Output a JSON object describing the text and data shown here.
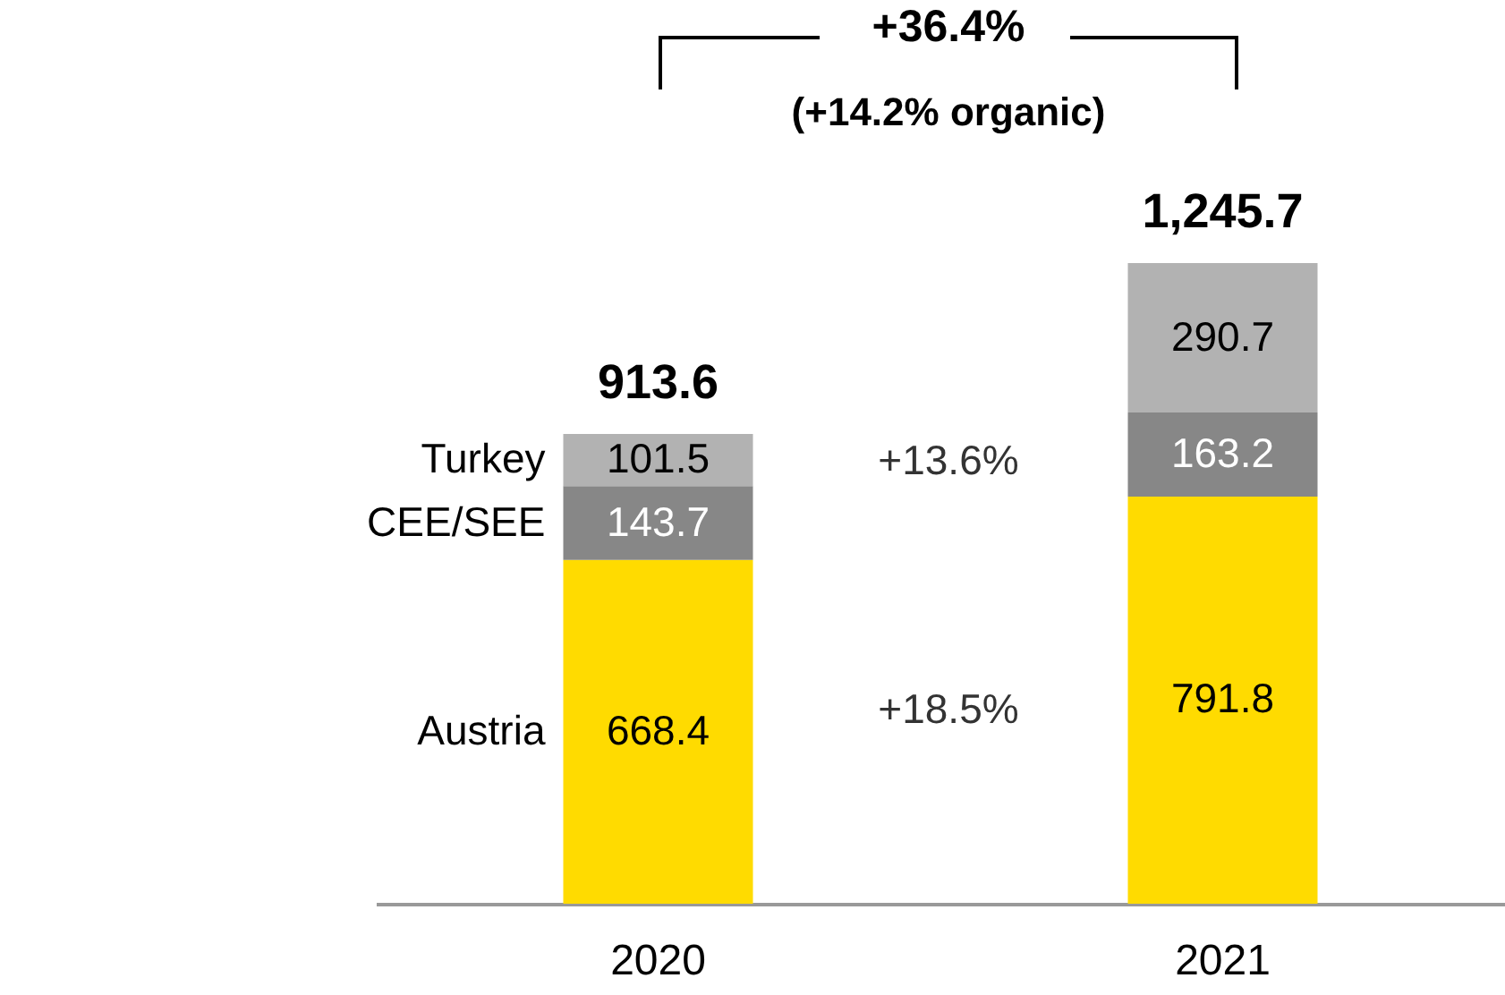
{
  "chart_data": {
    "type": "bar",
    "stacked": true,
    "data_labels": true,
    "legend": "left",
    "categories": [
      "2020",
      "2021"
    ],
    "series": [
      {
        "name": "Austria",
        "color": "#ffdb00",
        "values": [
          668.4,
          791.8
        ]
      },
      {
        "name": "CEE/SEE",
        "color": "#878787",
        "values": [
          143.7,
          163.2
        ]
      },
      {
        "name": "Turkey",
        "color": "#b2b2b2",
        "values": [
          101.5,
          290.7
        ]
      }
    ],
    "totals": [
      "913.6",
      "1,245.7"
    ],
    "annotations": [
      "+36.4%",
      "(+14.2% organic)",
      "+13.6%",
      "+18.5%"
    ]
  }
}
